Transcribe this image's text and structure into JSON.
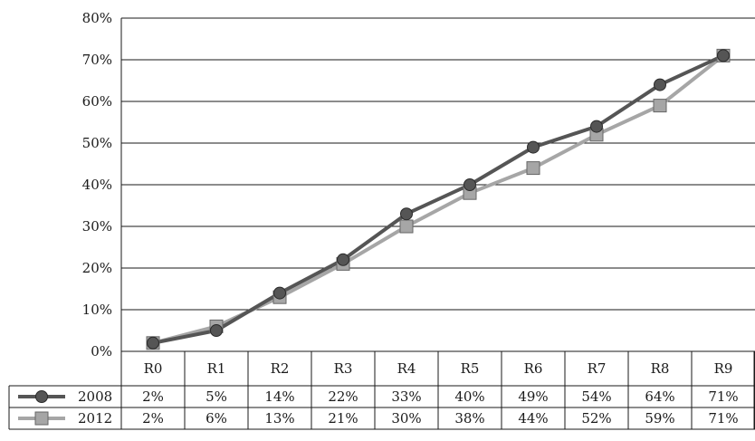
{
  "chart_data": {
    "type": "line",
    "categories": [
      "R0",
      "R1",
      "R2",
      "R3",
      "R4",
      "R5",
      "R6",
      "R7",
      "R8",
      "R9"
    ],
    "series": [
      {
        "name": "2008",
        "values": [
          2,
          5,
          14,
          22,
          33,
          40,
          49,
          54,
          64,
          71
        ],
        "color": "#555555",
        "marker": "circle"
      },
      {
        "name": "2012",
        "values": [
          2,
          6,
          13,
          21,
          30,
          38,
          44,
          52,
          59,
          71
        ],
        "color": "#a6a6a6",
        "marker": "square"
      }
    ],
    "ylim": [
      0,
      80
    ],
    "yticks": [
      0,
      10,
      20,
      30,
      40,
      50,
      60,
      70,
      80
    ],
    "unit": "%",
    "grid": true,
    "data_table": true,
    "legend_placement": "data-table-rows"
  }
}
